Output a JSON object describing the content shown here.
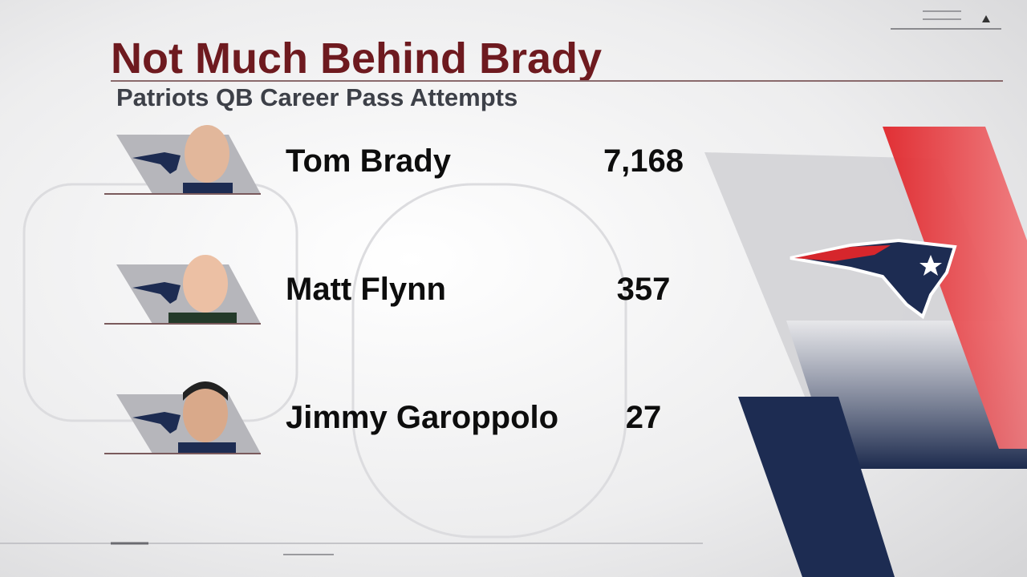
{
  "header": {
    "title": "Not Much Behind Brady",
    "subtitle": "Patriots QB Career Pass Attempts"
  },
  "rows": [
    {
      "name": "Tom Brady",
      "attempts": "7,168"
    },
    {
      "name": "Matt Flynn",
      "attempts": "357"
    },
    {
      "name": "Jimmy Garoppolo",
      "attempts": "27"
    }
  ]
}
